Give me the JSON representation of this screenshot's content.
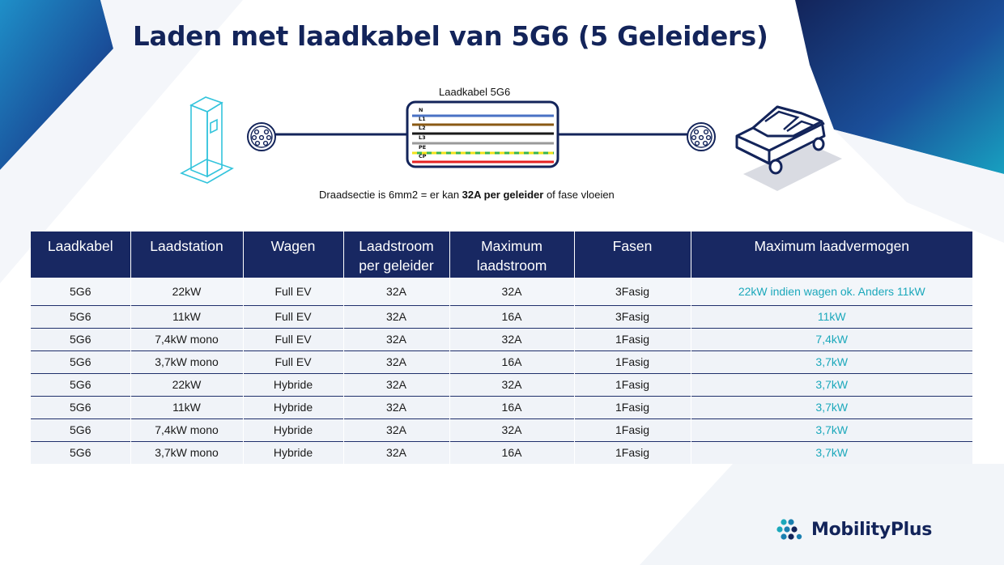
{
  "title": "Laden met laadkabel van 5G6 (5 Geleiders)",
  "diagram": {
    "cable_label": "Laadkabel 5G6",
    "wires": [
      {
        "label": "N",
        "color": "#4a72c4"
      },
      {
        "label": "L1",
        "color": "#8a5a14"
      },
      {
        "label": "L2",
        "color": "#1a1a1a"
      },
      {
        "label": "L3",
        "color": "#9a9a9a"
      },
      {
        "label": "PE",
        "color": "#3ab54a"
      },
      {
        "label": "CP",
        "color": "#e52222"
      }
    ],
    "note_prefix": "Draadsectie is 6mm2 = er kan ",
    "note_bold": "32A per geleider",
    "note_suffix": " of fase vloeien",
    "icons": [
      "charging-station-icon",
      "type2-plug-icon",
      "car-icon"
    ]
  },
  "table": {
    "headers": [
      "Laadkabel",
      "Laadstation",
      "Wagen",
      "Laadstroom\nper geleider",
      "Maximum\nlaadstroom",
      "Fasen",
      "Maximum laadvermogen"
    ],
    "rows": [
      [
        "5G6",
        "22kW",
        "Full EV",
        "32A",
        "32A",
        "3Fasig",
        "22kW indien wagen ok. Anders 11kW"
      ],
      [
        "5G6",
        "11kW",
        "Full EV",
        "32A",
        "16A",
        "3Fasig",
        "11kW"
      ],
      [
        "5G6",
        "7,4kW mono",
        "Full EV",
        "32A",
        "32A",
        "1Fasig",
        "7,4kW"
      ],
      [
        "5G6",
        "3,7kW mono",
        "Full EV",
        "32A",
        "16A",
        "1Fasig",
        "3,7kW"
      ],
      [
        "5G6",
        "22kW",
        "Hybride",
        "32A",
        "32A",
        "1Fasig",
        "3,7kW"
      ],
      [
        "5G6",
        "11kW",
        "Hybride",
        "32A",
        "16A",
        "1Fasig",
        "3,7kW"
      ],
      [
        "5G6",
        "7,4kW mono",
        "Hybride",
        "32A",
        "32A",
        "1Fasig",
        "3,7kW"
      ],
      [
        "5G6",
        "3,7kW mono",
        "Hybride",
        "32A",
        "16A",
        "1Fasig",
        "3,7kW"
      ]
    ]
  },
  "logo": {
    "text": "MobilityPlus"
  },
  "colors": {
    "navy": "#13245a",
    "header_bg": "#182862",
    "accent_teal": "#1ba8bb",
    "row_bg": "#f0f3f8"
  }
}
